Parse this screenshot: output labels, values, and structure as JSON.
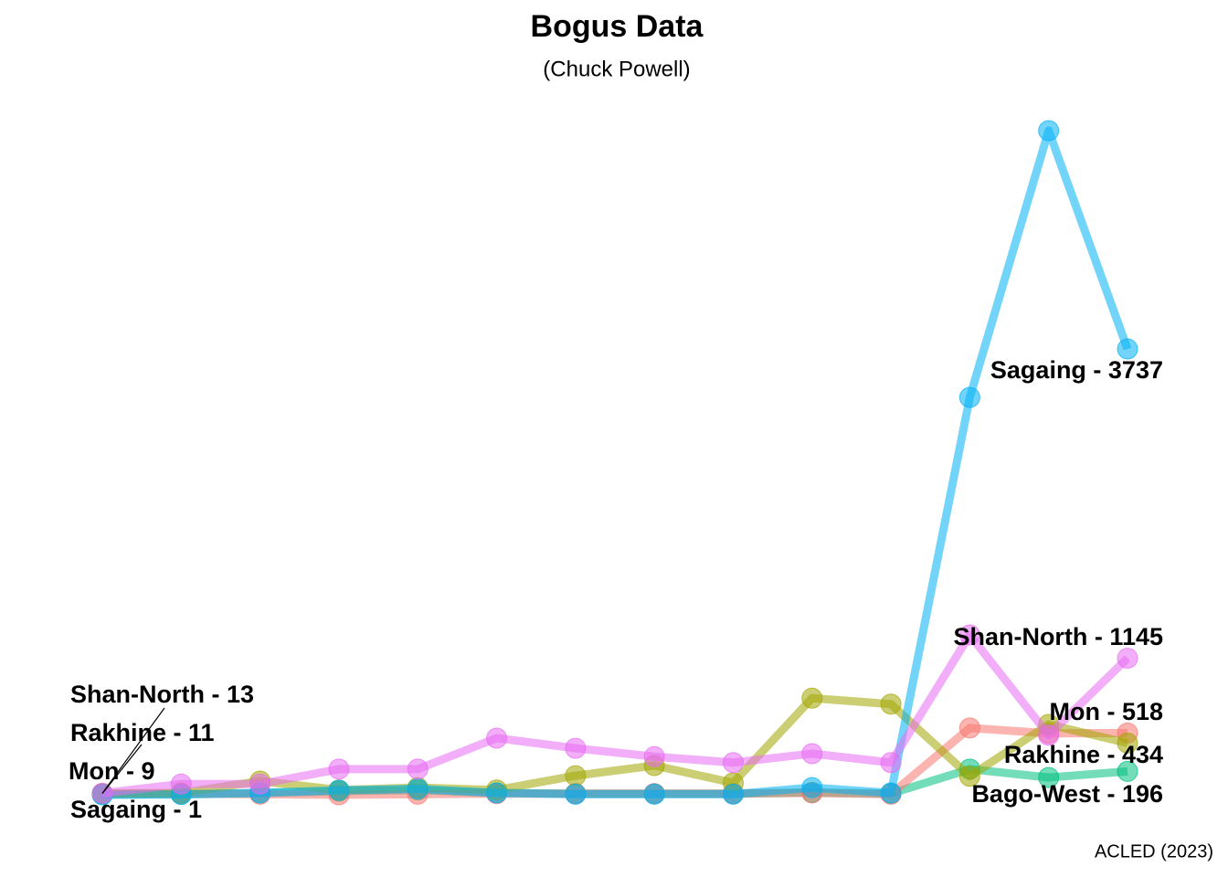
{
  "chart_data": {
    "type": "line",
    "title": "Bogus Data",
    "subtitle": "(Chuck Powell)",
    "caption": "ACLED (2023)",
    "categories": [
      null,
      null,
      null,
      null,
      null,
      null,
      null,
      null,
      null,
      null,
      null,
      null,
      null,
      null
    ],
    "series": [
      {
        "name": "Bago-West",
        "color": "#00BF7D",
        "values": [
          1,
          5,
          15,
          30,
          40,
          15,
          10,
          10,
          10,
          20,
          10,
          215,
          145,
          196
        ],
        "value_labels": [
          null,
          null,
          null,
          null,
          null,
          null,
          null,
          null,
          null,
          null,
          null,
          null,
          null,
          "Bago-West - 196"
        ]
      },
      {
        "name": "Mon",
        "color": "#F8766D",
        "values": [
          9,
          10,
          5,
          0,
          5,
          10,
          10,
          10,
          10,
          15,
          5,
          560,
          515,
          518
        ],
        "value_labels": [
          "Mon - 9",
          null,
          null,
          null,
          null,
          null,
          null,
          null,
          null,
          null,
          null,
          null,
          null,
          "Mon - 518"
        ]
      },
      {
        "name": "Rakhine",
        "color": "#A3A500",
        "values": [
          11,
          15,
          115,
          40,
          60,
          40,
          160,
          245,
          100,
          810,
          760,
          155,
          590,
          434
        ],
        "value_labels": [
          "Rakhine - 11",
          null,
          null,
          null,
          null,
          null,
          null,
          null,
          null,
          null,
          null,
          null,
          null,
          "Rakhine - 434"
        ]
      },
      {
        "name": "Sagaing",
        "color": "#00B0F6",
        "values": [
          1,
          3,
          15,
          38,
          50,
          15,
          5,
          5,
          5,
          60,
          15,
          3331,
          5567,
          3737
        ],
        "value_labels": [
          "Sagaing - 1",
          null,
          null,
          null,
          null,
          null,
          null,
          null,
          null,
          null,
          null,
          null,
          null,
          "Sagaing - 3737"
        ]
      },
      {
        "name": "Shan-North",
        "color": "#E76BF3",
        "values": [
          13,
          90,
          90,
          215,
          215,
          475,
          390,
          320,
          270,
          345,
          270,
          1340,
          500,
          1145
        ],
        "value_labels": [
          "Shan-North - 13",
          null,
          null,
          null,
          null,
          null,
          null,
          null,
          null,
          null,
          null,
          null,
          null,
          "Shan-North - 1145"
        ]
      }
    ]
  }
}
